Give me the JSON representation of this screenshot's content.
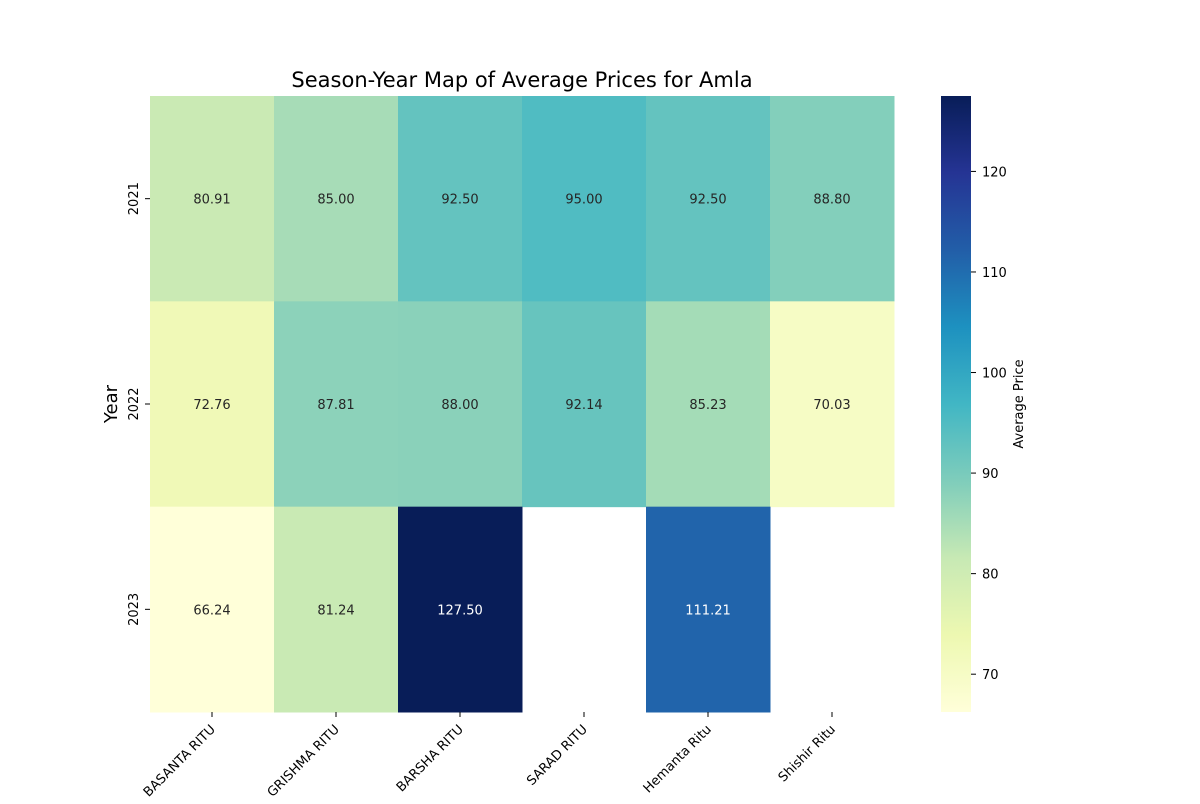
{
  "chart_data": {
    "type": "heatmap",
    "title": "Season-Year Map of Average Prices for Amla",
    "xlabel": "",
    "ylabel": "Year",
    "x_categories": [
      "BASANTA RITU",
      "GRISHMA RITU",
      "BARSHA RITU",
      "SARAD RITU",
      "Hemanta Ritu",
      "Shishir Ritu"
    ],
    "y_categories": [
      "2021",
      "2022",
      "2023"
    ],
    "values": [
      [
        80.91,
        85.0,
        92.5,
        95.0,
        92.5,
        88.8
      ],
      [
        72.76,
        87.81,
        88.0,
        92.14,
        85.23,
        70.03
      ],
      [
        66.24,
        81.24,
        127.5,
        null,
        111.21,
        null
      ]
    ],
    "value_format": "2 decimals",
    "colorbar": {
      "label": "Average Price",
      "ticks": [
        70,
        80,
        90,
        100,
        110,
        120
      ],
      "range": [
        66.24,
        127.5
      ],
      "colormap": "YlGnBu"
    },
    "grid": false,
    "legend": "colorbar right"
  }
}
